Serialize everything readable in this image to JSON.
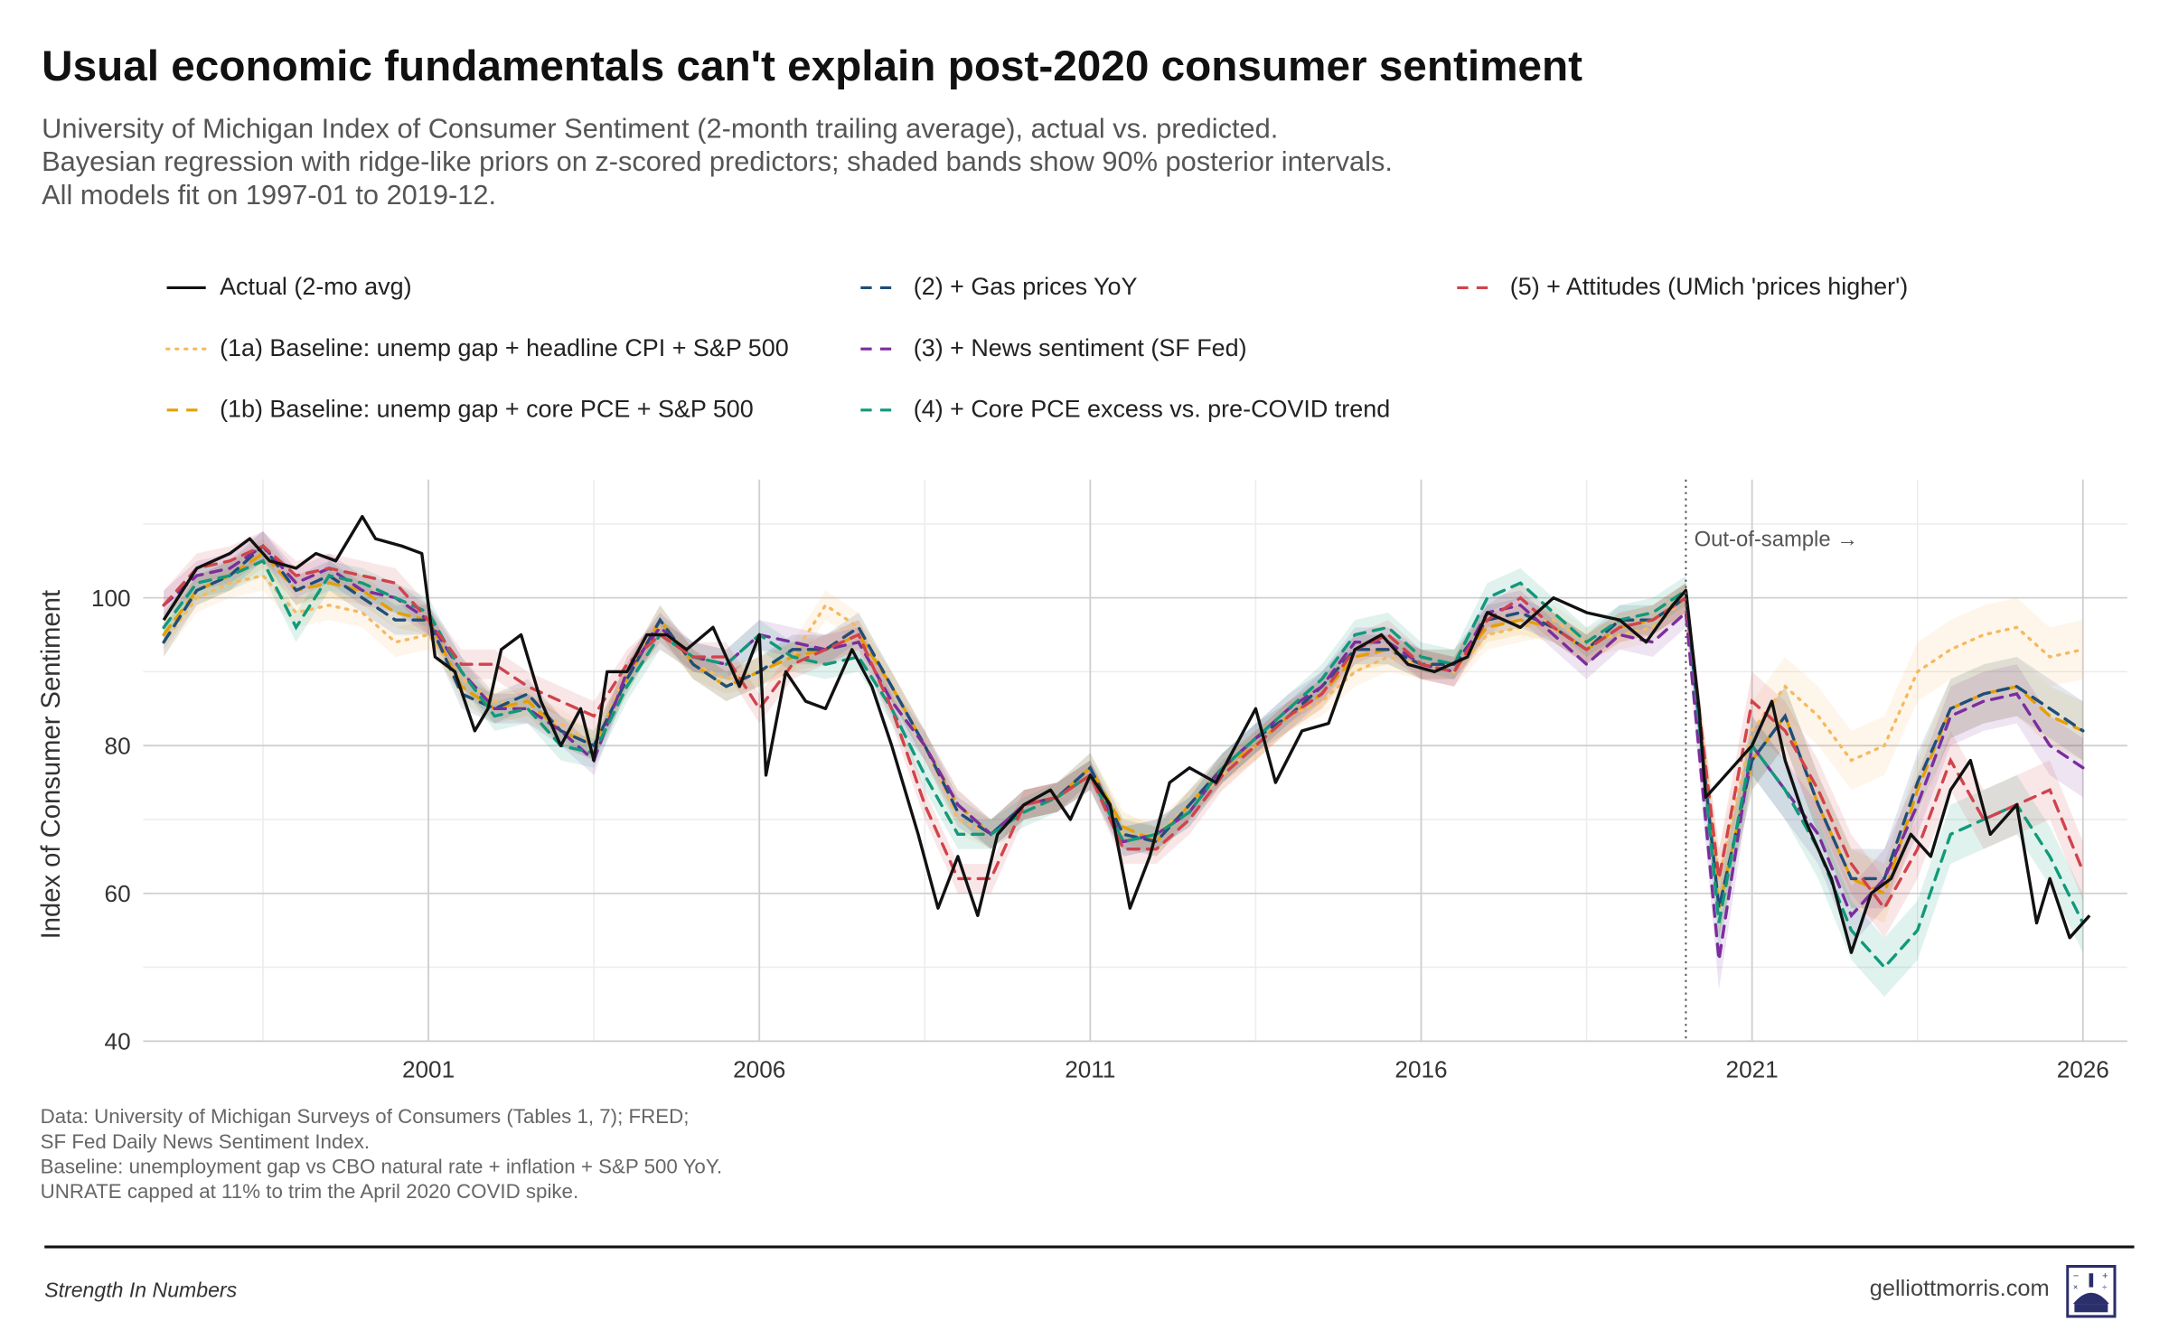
{
  "title": "Usual economic fundamentals can't explain post-2020 consumer sentiment",
  "subtitle": [
    "University of Michigan Index of Consumer Sentiment (2-month trailing average), actual vs. predicted.",
    "Bayesian regression with ridge-like priors on z-scored predictors; shaded bands show 90% posterior intervals.",
    "All models fit on 1997-01 to 2019-12."
  ],
  "notes": [
    "Data: University of Michigan Surveys of Consumers (Tables 1, 7); FRED;",
    "SF Fed Daily News Sentiment Index.",
    "Baseline: unemployment gap vs CBO natural rate + inflation + S&P 500 YoY.",
    "UNRATE capped at 11% to trim the April 2020 COVID spike."
  ],
  "footer": {
    "brand": "Strength In Numbers",
    "site": "gelliottmorris.com"
  },
  "chart_data": {
    "type": "line",
    "ylabel": "Index of Consumer Sentiment",
    "xlabel": "",
    "xlim": [
      1996.69,
      2026.67
    ],
    "ylim": [
      40,
      116
    ],
    "xticks": [
      2001,
      2006,
      2011,
      2016,
      2021,
      2026
    ],
    "xtick_labels": [
      "2001",
      "2006",
      "2011",
      "2016",
      "2021",
      "2026"
    ],
    "xminor": [
      1998.5,
      2003.5,
      2008.5,
      2013.5,
      2018.5,
      2023.5
    ],
    "yticks": [
      40,
      60,
      80,
      100
    ],
    "ytick_labels": [
      "40",
      "60",
      "80",
      "100"
    ],
    "yminor": [
      50,
      70,
      90,
      110
    ],
    "grid": true,
    "legend_position": "top",
    "annotation": {
      "x": 2020.0,
      "label": "Out-of-sample →"
    },
    "band_halfwidth": {
      "in_sample": 2,
      "out_of_sample": 4
    },
    "actual": {
      "name": "Actual (2-mo avg)",
      "color": "#111111",
      "points": [
        [
          1997.0,
          97
        ],
        [
          1997.5,
          104
        ],
        [
          1998.0,
          106
        ],
        [
          1998.3,
          108
        ],
        [
          1998.6,
          105
        ],
        [
          1999.0,
          104
        ],
        [
          1999.3,
          106
        ],
        [
          1999.6,
          105
        ],
        [
          2000.0,
          111
        ],
        [
          2000.2,
          108
        ],
        [
          2000.6,
          107
        ],
        [
          2000.9,
          106
        ],
        [
          2001.1,
          92
        ],
        [
          2001.4,
          90
        ],
        [
          2001.7,
          82
        ],
        [
          2001.9,
          85
        ],
        [
          2002.1,
          93
        ],
        [
          2002.4,
          95
        ],
        [
          2002.7,
          86
        ],
        [
          2003.0,
          80
        ],
        [
          2003.3,
          85
        ],
        [
          2003.5,
          78
        ],
        [
          2003.7,
          90
        ],
        [
          2004.0,
          90
        ],
        [
          2004.3,
          95
        ],
        [
          2004.6,
          95
        ],
        [
          2004.9,
          93
        ],
        [
          2005.3,
          96
        ],
        [
          2005.7,
          88
        ],
        [
          2006.0,
          95
        ],
        [
          2006.1,
          76
        ],
        [
          2006.4,
          90
        ],
        [
          2006.7,
          86
        ],
        [
          2007.0,
          85
        ],
        [
          2007.4,
          93
        ],
        [
          2007.7,
          88
        ],
        [
          2008.0,
          80
        ],
        [
          2008.4,
          68
        ],
        [
          2008.7,
          58
        ],
        [
          2009.0,
          65
        ],
        [
          2009.3,
          57
        ],
        [
          2009.6,
          68
        ],
        [
          2010.0,
          72
        ],
        [
          2010.4,
          74
        ],
        [
          2010.7,
          70
        ],
        [
          2011.0,
          76
        ],
        [
          2011.3,
          72
        ],
        [
          2011.6,
          58
        ],
        [
          2011.9,
          65
        ],
        [
          2012.2,
          75
        ],
        [
          2012.5,
          77
        ],
        [
          2012.9,
          75
        ],
        [
          2013.2,
          80
        ],
        [
          2013.5,
          85
        ],
        [
          2013.8,
          75
        ],
        [
          2014.2,
          82
        ],
        [
          2014.6,
          83
        ],
        [
          2015.0,
          93
        ],
        [
          2015.4,
          95
        ],
        [
          2015.8,
          91
        ],
        [
          2016.2,
          90
        ],
        [
          2016.7,
          92
        ],
        [
          2017.0,
          98
        ],
        [
          2017.5,
          96
        ],
        [
          2018.0,
          100
        ],
        [
          2018.5,
          98
        ],
        [
          2019.0,
          97
        ],
        [
          2019.4,
          94
        ],
        [
          2019.8,
          99
        ],
        [
          2020.0,
          101
        ],
        [
          2020.2,
          85
        ],
        [
          2020.3,
          73
        ],
        [
          2020.5,
          75
        ],
        [
          2020.8,
          78
        ],
        [
          2021.0,
          80
        ],
        [
          2021.3,
          86
        ],
        [
          2021.5,
          78
        ],
        [
          2021.8,
          70
        ],
        [
          2022.2,
          62
        ],
        [
          2022.5,
          52
        ],
        [
          2022.8,
          60
        ],
        [
          2023.1,
          62
        ],
        [
          2023.4,
          68
        ],
        [
          2023.7,
          65
        ],
        [
          2024.0,
          74
        ],
        [
          2024.3,
          78
        ],
        [
          2024.6,
          68
        ],
        [
          2025.0,
          72
        ],
        [
          2025.3,
          56
        ],
        [
          2025.5,
          62
        ],
        [
          2025.8,
          54
        ],
        [
          2026.1,
          57
        ]
      ]
    },
    "model_x_start": 1997.0,
    "model_x_step": 0.5,
    "series": [
      {
        "name": "(1a) Baseline: unemp gap + headline CPI + S&P 500",
        "color": "#F5B961",
        "dash": "dotted",
        "values": [
          94,
          100,
          102,
          103,
          98,
          99,
          98,
          94,
          95,
          89,
          86,
          85,
          83,
          80,
          90,
          96,
          91,
          89,
          90,
          92,
          99,
          96,
          88,
          80,
          70,
          68,
          72,
          73,
          76,
          68,
          68,
          72,
          76,
          80,
          84,
          86,
          90,
          92,
          91,
          90,
          95,
          96,
          97,
          94,
          95,
          96,
          100,
          62,
          82,
          88,
          84,
          78,
          80,
          90,
          93,
          95,
          96,
          92,
          93
        ]
      },
      {
        "name": "(1b) Baseline: unemp gap + core PCE + S&P 500",
        "color": "#E69F00",
        "dash": "dashed",
        "values": [
          95,
          101,
          103,
          106,
          101,
          102,
          101,
          98,
          97,
          88,
          85,
          86,
          82,
          80,
          89,
          97,
          91,
          88,
          90,
          92,
          93,
          95,
          88,
          80,
          72,
          68,
          72,
          73,
          77,
          69,
          67,
          72,
          77,
          80,
          84,
          87,
          92,
          93,
          91,
          91,
          96,
          97,
          96,
          93,
          96,
          97,
          100,
          58,
          78,
          84,
          72,
          62,
          60,
          74,
          85,
          87,
          88,
          84,
          82
        ]
      },
      {
        "name": "(2) + Gas prices YoY",
        "color": "#1F4E79",
        "dash": "dashed",
        "values": [
          94,
          101,
          103,
          107,
          101,
          103,
          100,
          97,
          97,
          87,
          85,
          87,
          82,
          80,
          89,
          97,
          91,
          88,
          90,
          93,
          93,
          96,
          88,
          80,
          71,
          68,
          72,
          73,
          77,
          68,
          67,
          72,
          77,
          81,
          84,
          88,
          93,
          93,
          91,
          91,
          97,
          98,
          96,
          93,
          97,
          97,
          100,
          58,
          78,
          84,
          72,
          62,
          62,
          75,
          85,
          87,
          88,
          85,
          82
        ]
      },
      {
        "name": "(3) + News sentiment (SF Fed)",
        "color": "#7B2D9E",
        "dash": "dashed",
        "values": [
          99,
          103,
          104,
          107,
          102,
          104,
          101,
          100,
          97,
          90,
          85,
          85,
          82,
          78,
          90,
          96,
          92,
          91,
          95,
          94,
          93,
          94,
          86,
          80,
          72,
          68,
          72,
          73,
          76,
          67,
          68,
          71,
          77,
          81,
          85,
          88,
          94,
          94,
          91,
          90,
          98,
          99,
          95,
          91,
          95,
          94,
          98,
          51,
          80,
          74,
          68,
          57,
          62,
          72,
          84,
          86,
          87,
          80,
          77
        ]
      },
      {
        "name": "(4) + Core PCE excess vs. pre-COVID trend",
        "color": "#11997A",
        "dash": "dashed",
        "values": [
          96,
          102,
          103,
          105,
          96,
          103,
          102,
          100,
          98,
          90,
          84,
          85,
          80,
          79,
          88,
          95,
          92,
          91,
          95,
          92,
          91,
          92,
          85,
          76,
          68,
          68,
          71,
          73,
          76,
          67,
          68,
          71,
          77,
          81,
          85,
          89,
          95,
          96,
          92,
          91,
          100,
          102,
          98,
          94,
          97,
          98,
          101,
          56,
          80,
          74,
          66,
          55,
          50,
          55,
          68,
          70,
          72,
          65,
          56
        ]
      },
      {
        "name": "(5) + Attitudes (UMich 'prices higher')",
        "color": "#D1434B",
        "dash": "dashed",
        "values": [
          99,
          104,
          105,
          107,
          103,
          104,
          103,
          102,
          97,
          91,
          91,
          88,
          86,
          84,
          91,
          95,
          92,
          92,
          85,
          91,
          93,
          95,
          85,
          72,
          62,
          62,
          72,
          73,
          76,
          66,
          66,
          70,
          76,
          80,
          84,
          87,
          93,
          95,
          91,
          90,
          97,
          100,
          96,
          93,
          96,
          97,
          100,
          62,
          86,
          82,
          74,
          64,
          58,
          66,
          78,
          70,
          72,
          74,
          63
        ]
      }
    ]
  }
}
